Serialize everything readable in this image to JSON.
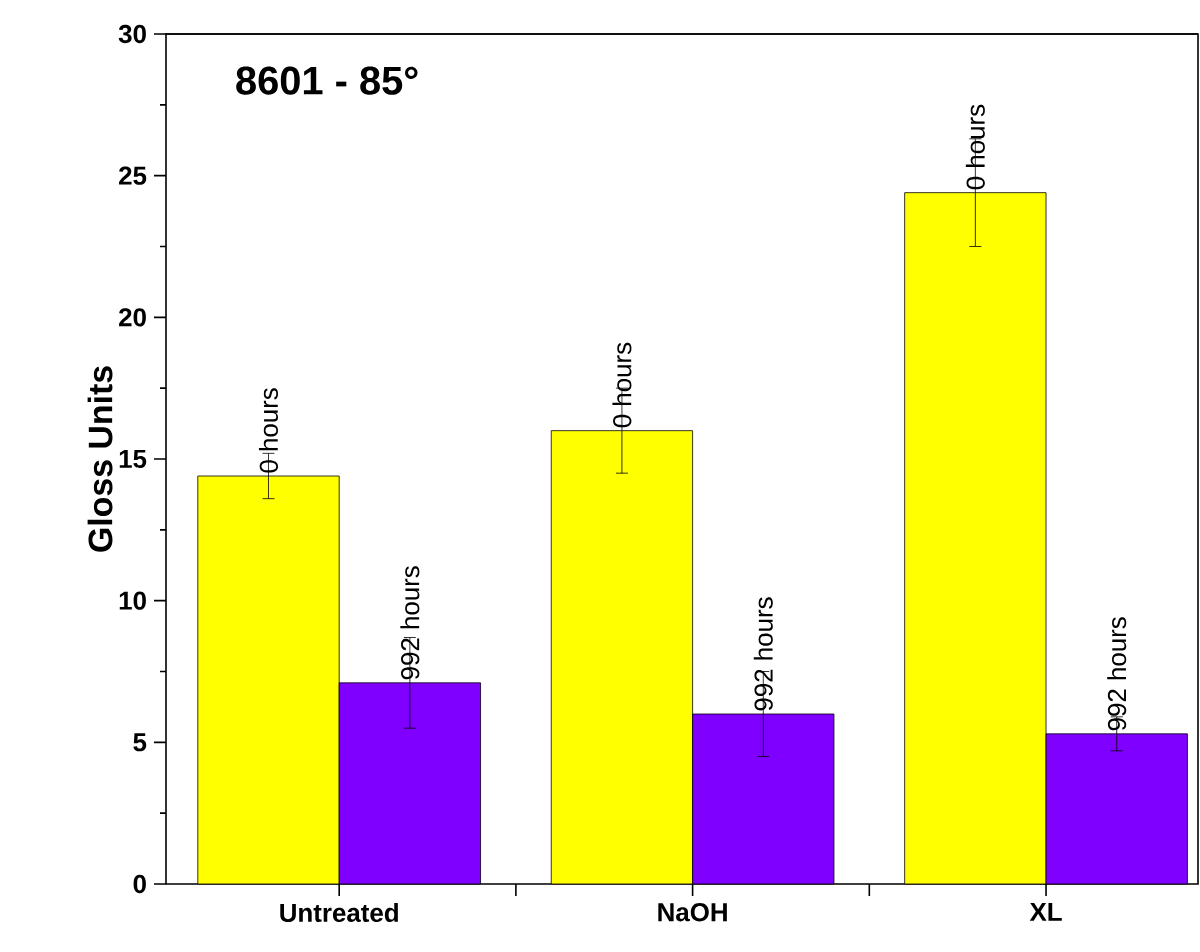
{
  "chart_data": {
    "type": "bar",
    "title": "8601 - 85°",
    "ylabel": "Gloss Units",
    "categories": [
      "Untreated",
      "NaOH",
      "XL"
    ],
    "series": [
      {
        "name": "0 hours",
        "color": "#ffff00",
        "values": [
          14.4,
          16.0,
          24.4
        ],
        "errors": [
          0.8,
          1.5,
          1.9
        ]
      },
      {
        "name": "992 hours",
        "color": "#8000ff",
        "values": [
          7.1,
          6.0,
          5.3
        ],
        "errors": [
          1.6,
          1.5,
          0.6
        ]
      }
    ],
    "ylim": [
      0,
      30
    ],
    "yticks": [
      0,
      5,
      10,
      15,
      20,
      25,
      30
    ]
  }
}
